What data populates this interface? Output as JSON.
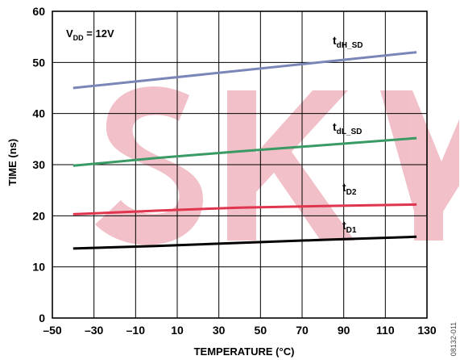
{
  "chart_data": {
    "type": "line",
    "xlabel": "TEMPERATURE (°C)",
    "ylabel": "TIME (ns)",
    "xlim": [
      -50,
      130
    ],
    "ylim": [
      0,
      60
    ],
    "xticks": [
      -50,
      -30,
      -10,
      10,
      30,
      50,
      70,
      90,
      110,
      130
    ],
    "xtick_labels": [
      "–50",
      "–30",
      "–10",
      "10",
      "30",
      "50",
      "70",
      "90",
      "110",
      "130"
    ],
    "yticks": [
      0,
      10,
      20,
      30,
      40,
      50,
      60
    ],
    "grid": true,
    "annotation": {
      "main": "V",
      "sub": "DD",
      "rest": " = 12V"
    },
    "figure_code": "08132-011",
    "series": [
      {
        "name": "tdH_SD",
        "label_main": "t",
        "label_sub": "dH_SD",
        "color": "#7b86b8",
        "x": [
          -40,
          125
        ],
        "y": [
          45,
          52
        ]
      },
      {
        "name": "tdL_SD",
        "label_main": "t",
        "label_sub": "dL_SD",
        "color": "#3a9a64",
        "x": [
          -40,
          0,
          40,
          80,
          125
        ],
        "y": [
          29.8,
          31.3,
          32.6,
          33.8,
          35.2
        ]
      },
      {
        "name": "tD2",
        "label_main": "t",
        "label_sub": "D2",
        "color": "#e0354e",
        "x": [
          -40,
          0,
          40,
          80,
          125
        ],
        "y": [
          20.3,
          21.0,
          21.6,
          21.9,
          22.2
        ]
      },
      {
        "name": "tD1",
        "label_main": "t",
        "label_sub": "D1",
        "color": "#000000",
        "x": [
          -40,
          0,
          40,
          80,
          125
        ],
        "y": [
          13.6,
          14.1,
          14.7,
          15.3,
          15.9
        ]
      }
    ]
  }
}
